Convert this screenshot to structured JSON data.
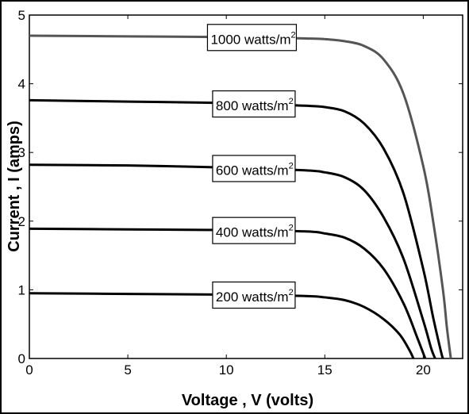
{
  "chart_data": {
    "type": "line",
    "title": "",
    "xlabel": "Voltage , V (volts)",
    "ylabel": "Current ,  I (amps)",
    "xlim": [
      0,
      22
    ],
    "ylim": [
      0,
      5
    ],
    "x_ticks": [
      0,
      5,
      10,
      15,
      20
    ],
    "y_ticks": [
      0,
      1,
      2,
      3,
      4,
      5
    ],
    "grid": false,
    "series": [
      {
        "name": "1000 watts/m2",
        "label_text": "1000 watts/m",
        "label_sup": "2",
        "color": "#555555",
        "points": [
          [
            0,
            4.7
          ],
          [
            5,
            4.69
          ],
          [
            10,
            4.68
          ],
          [
            14,
            4.66
          ],
          [
            15,
            4.65
          ],
          [
            16,
            4.62
          ],
          [
            17,
            4.55
          ],
          [
            18,
            4.35
          ],
          [
            19,
            3.85
          ],
          [
            20,
            2.8
          ],
          [
            20.5,
            2.0
          ],
          [
            21,
            1.0
          ],
          [
            21.2,
            0.45
          ],
          [
            21.4,
            0
          ]
        ]
      },
      {
        "name": "800 watts/m2",
        "label_text": "800 watts/m",
        "label_sup": "2",
        "color": "#000000",
        "points": [
          [
            0,
            3.76
          ],
          [
            5,
            3.74
          ],
          [
            10,
            3.72
          ],
          [
            14,
            3.68
          ],
          [
            15,
            3.66
          ],
          [
            16,
            3.6
          ],
          [
            17,
            3.42
          ],
          [
            18,
            3.05
          ],
          [
            19,
            2.4
          ],
          [
            20,
            1.3
          ],
          [
            20.5,
            0.6
          ],
          [
            20.9,
            0.1
          ],
          [
            21.0,
            0
          ]
        ]
      },
      {
        "name": "600 watts/m2",
        "label_text": "600 watts/m",
        "label_sup": "2",
        "color": "#000000",
        "points": [
          [
            0,
            2.82
          ],
          [
            5,
            2.81
          ],
          [
            10,
            2.78
          ],
          [
            14,
            2.74
          ],
          [
            15,
            2.71
          ],
          [
            16,
            2.64
          ],
          [
            17,
            2.45
          ],
          [
            18,
            2.05
          ],
          [
            19,
            1.45
          ],
          [
            20,
            0.55
          ],
          [
            20.4,
            0.15
          ],
          [
            20.6,
            0
          ]
        ]
      },
      {
        "name": "400 watts/m2",
        "label_text": "400 watts/m",
        "label_sup": "2",
        "color": "#000000",
        "points": [
          [
            0,
            1.89
          ],
          [
            5,
            1.88
          ],
          [
            10,
            1.87
          ],
          [
            14,
            1.85
          ],
          [
            15,
            1.82
          ],
          [
            16,
            1.76
          ],
          [
            17,
            1.6
          ],
          [
            18,
            1.3
          ],
          [
            19,
            0.8
          ],
          [
            19.7,
            0.3
          ],
          [
            20.1,
            0
          ]
        ]
      },
      {
        "name": "200 watts/m2",
        "label_text": "200 watts/m",
        "label_sup": "2",
        "color": "#000000",
        "points": [
          [
            0,
            0.95
          ],
          [
            5,
            0.94
          ],
          [
            10,
            0.93
          ],
          [
            14,
            0.91
          ],
          [
            15,
            0.89
          ],
          [
            16,
            0.85
          ],
          [
            17,
            0.75
          ],
          [
            18,
            0.57
          ],
          [
            18.8,
            0.35
          ],
          [
            19.3,
            0.12
          ],
          [
            19.5,
            0
          ]
        ]
      }
    ]
  }
}
